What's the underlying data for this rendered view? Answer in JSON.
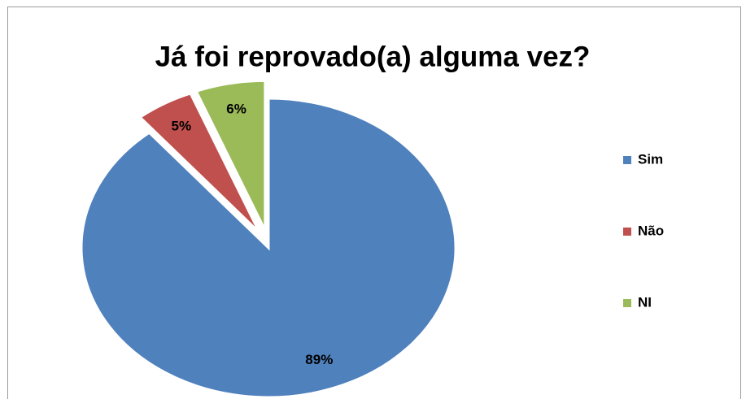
{
  "chart_data": {
    "type": "pie",
    "title": "Já foi reprovado(a) alguma vez?",
    "categories": [
      "Sim",
      "Não",
      "NI"
    ],
    "values": [
      89,
      5,
      6
    ],
    "value_labels": [
      "89%",
      "5%",
      "6%"
    ],
    "colors": [
      "#4f81bd",
      "#c0504d",
      "#9bbb59"
    ],
    "legend": "right"
  }
}
